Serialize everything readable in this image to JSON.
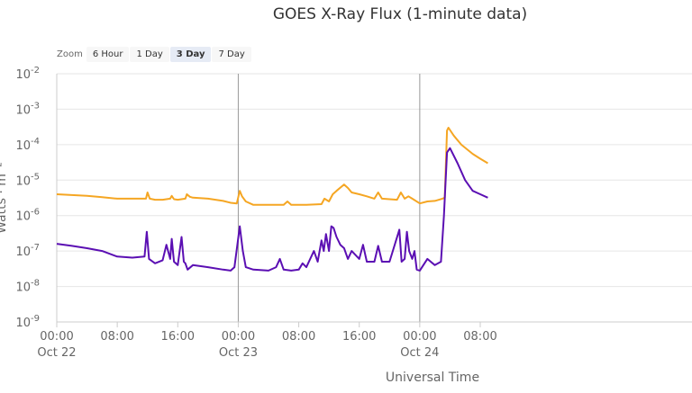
{
  "title": "GOES X-Ray Flux (1-minute data)",
  "zoom": {
    "label": "Zoom",
    "buttons": [
      {
        "label": "6 Hour",
        "active": false
      },
      {
        "label": "1 Day",
        "active": false
      },
      {
        "label": "3 Day",
        "active": true
      },
      {
        "label": "7 Day",
        "active": false
      }
    ]
  },
  "chart_data": {
    "type": "line",
    "title": "GOES X-Ray Flux (1-minute data)",
    "xlabel": "Universal Time",
    "ylabel": "Watts · m⁻²",
    "y_scale": "log",
    "ylim_exponents": [
      -9,
      -2
    ],
    "y_tick_base": "10",
    "y_tick_exponents": [
      "-9",
      "-8",
      "-7",
      "-6",
      "-5",
      "-4",
      "-3",
      "-2"
    ],
    "xlim_hours": [
      0,
      84
    ],
    "x_ticks": [
      {
        "hour": 0,
        "time": "00:00",
        "date": "Oct 22"
      },
      {
        "hour": 8,
        "time": "08:00",
        "date": ""
      },
      {
        "hour": 16,
        "time": "16:00",
        "date": ""
      },
      {
        "hour": 24,
        "time": "00:00",
        "date": "Oct 23"
      },
      {
        "hour": 32,
        "time": "08:00",
        "date": ""
      },
      {
        "hour": 40,
        "time": "16:00",
        "date": ""
      },
      {
        "hour": 48,
        "time": "00:00",
        "date": "Oct 24"
      },
      {
        "hour": 56,
        "time": "08:00",
        "date": ""
      }
    ],
    "day_boundaries_hours": [
      24,
      48
    ],
    "grid": true,
    "series": [
      {
        "color": "#f5a623",
        "x": [
          0,
          2,
          4,
          6,
          8,
          10,
          11.8,
          12,
          12.3,
          13,
          14,
          15,
          15.2,
          15.5,
          16,
          17,
          17.2,
          17.6,
          18,
          20,
          22,
          23,
          23.8,
          24.2,
          24.5,
          25,
          26,
          28,
          30,
          30.5,
          31,
          33,
          35,
          35.4,
          36,
          36.5,
          37,
          38,
          38.5,
          39,
          40,
          41,
          42,
          42.5,
          43,
          45,
          45.5,
          46,
          46.5,
          47,
          48,
          49,
          50,
          51,
          51.3,
          51.6,
          51.8,
          52.5,
          53.5,
          55,
          56,
          57
        ],
        "y": [
          4e-06,
          3.8e-06,
          3.6e-06,
          3.3e-06,
          3e-06,
          3e-06,
          3e-06,
          4.5e-06,
          3e-06,
          2.8e-06,
          2.8e-06,
          3e-06,
          3.6e-06,
          2.9e-06,
          2.8e-06,
          3e-06,
          4e-06,
          3.4e-06,
          3.2e-06,
          3e-06,
          2.6e-06,
          2.3e-06,
          2.2e-06,
          5e-06,
          3.5e-06,
          2.5e-06,
          2e-06,
          2e-06,
          2e-06,
          2.5e-06,
          2e-06,
          2e-06,
          2.1e-06,
          3e-06,
          2.5e-06,
          4e-06,
          5e-06,
          7.5e-06,
          6e-06,
          4.5e-06,
          4e-06,
          3.5e-06,
          3e-06,
          4.5e-06,
          3e-06,
          2.8e-06,
          4.5e-06,
          3e-06,
          3.5e-06,
          3e-06,
          2.2e-06,
          2.5e-06,
          2.6e-06,
          3e-06,
          3.2e-06,
          0.00025,
          0.0003,
          0.00018,
          0.0001,
          5.5e-05,
          4e-05,
          3e-05
        ]
      },
      {
        "color": "#5b0fb3",
        "x": [
          0,
          2,
          4,
          6,
          8,
          10,
          11.6,
          11.9,
          12.2,
          13,
          14,
          14.5,
          15,
          15.2,
          15.5,
          16,
          16.5,
          16.8,
          17,
          17.3,
          18,
          20,
          22,
          23,
          23.5,
          24.2,
          24.6,
          25,
          26,
          28,
          29,
          29.5,
          30,
          31,
          32,
          32.5,
          33,
          34,
          34.5,
          35,
          35.3,
          35.6,
          36,
          36.3,
          36.6,
          37,
          37.5,
          38,
          38.5,
          39,
          40,
          40.5,
          41,
          42,
          42.5,
          43,
          44,
          45.3,
          45.6,
          46,
          46.3,
          46.6,
          47,
          47.3,
          47.6,
          48,
          49,
          50,
          50.8,
          51.2,
          51.6,
          52,
          53,
          54,
          55,
          56,
          57
        ],
        "y": [
          1.6e-07,
          1.4e-07,
          1.2e-07,
          1e-07,
          7e-08,
          6.5e-08,
          7e-08,
          3.5e-07,
          6e-08,
          4.5e-08,
          5.5e-08,
          1.5e-07,
          6e-08,
          2.2e-07,
          5e-08,
          4e-08,
          2.5e-07,
          5e-08,
          4.5e-08,
          3e-08,
          4e-08,
          3.5e-08,
          3e-08,
          2.8e-08,
          3.5e-08,
          5e-07,
          1e-07,
          3.5e-08,
          3e-08,
          2.8e-08,
          3.5e-08,
          6e-08,
          3e-08,
          2.8e-08,
          3e-08,
          4.5e-08,
          3.5e-08,
          1e-07,
          5e-08,
          2e-07,
          1e-07,
          3e-07,
          1e-07,
          5e-07,
          4.5e-07,
          2.5e-07,
          1.5e-07,
          1.2e-07,
          6e-08,
          1e-07,
          6e-08,
          1.5e-07,
          5e-08,
          5e-08,
          1.4e-07,
          5e-08,
          5e-08,
          4e-07,
          5e-08,
          6e-08,
          3.5e-07,
          1e-07,
          6e-08,
          1e-07,
          3e-08,
          2.8e-08,
          6e-08,
          4e-08,
          5e-08,
          1e-06,
          6e-05,
          8e-05,
          3e-05,
          1e-05,
          5e-06,
          4e-06,
          3.2e-06
        ]
      }
    ]
  }
}
